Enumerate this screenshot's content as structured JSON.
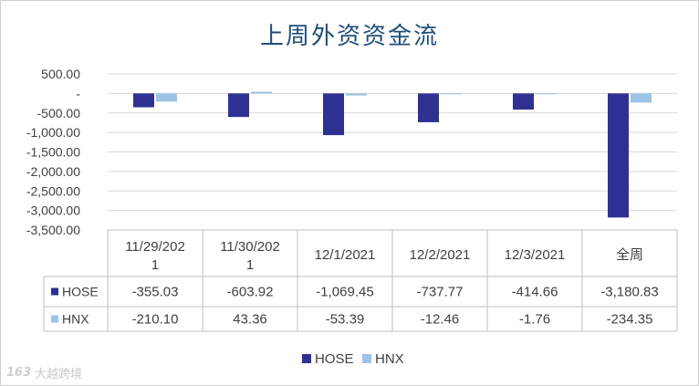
{
  "chart_data": {
    "type": "bar",
    "title": "上周外资资金流",
    "categories": [
      "11/29/2021",
      "11/30/2021",
      "12/1/2021",
      "12/2/2021",
      "12/3/2021",
      "全周"
    ],
    "category_display": [
      [
        "11/29/202",
        "1"
      ],
      [
        "11/30/202",
        "1"
      ],
      [
        "12/1/2021"
      ],
      [
        "12/2/2021"
      ],
      [
        "12/3/2021"
      ],
      [
        "全周"
      ]
    ],
    "series": [
      {
        "name": "HOSE",
        "values": [
          -355.03,
          -603.92,
          -1069.45,
          -737.77,
          -414.66,
          -3180.83
        ],
        "value_labels": [
          "-355.03",
          "-603.92",
          "-1,069.45",
          "-737.77",
          "-414.66",
          "-3,180.83"
        ],
        "color": "#2e3192"
      },
      {
        "name": "HNX",
        "values": [
          -210.1,
          43.36,
          -53.39,
          -12.46,
          -1.76,
          -234.35
        ],
        "value_labels": [
          "-210.10",
          "43.36",
          "-53.39",
          "-12.46",
          "-1.76",
          "-234.35"
        ],
        "color": "#9dc3e6"
      }
    ],
    "ylim": [
      -3500,
      500
    ],
    "y_ticks": [
      500,
      0,
      -500,
      -1000,
      -1500,
      -2000,
      -2500,
      -3000,
      -3500
    ],
    "y_tick_labels": [
      "500.00",
      "-",
      "-500.00",
      "-1,000.00",
      "-1,500.00",
      "-2,000.00",
      "-2,500.00",
      "-3,000.00",
      "-3,500.00"
    ],
    "grid": true,
    "legend": "bottom",
    "data_table": true
  },
  "watermark": {
    "logo": "163",
    "text": "大越跨境"
  }
}
